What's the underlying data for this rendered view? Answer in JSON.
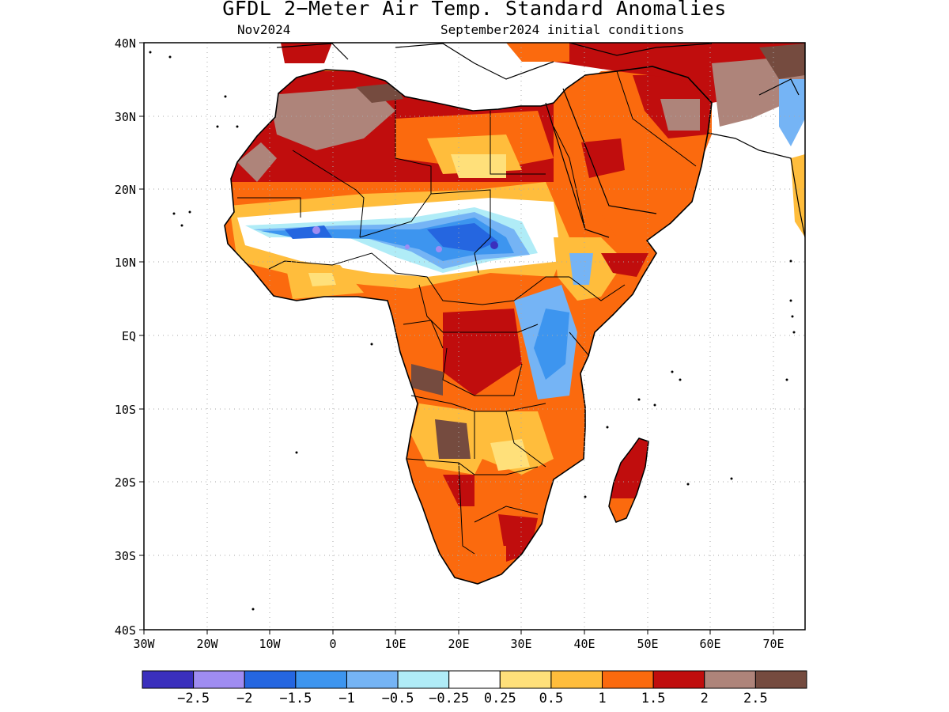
{
  "header": {
    "title": "GFDL 2−Meter Air Temp. Standard Anomalies",
    "valid_month": "Nov2024",
    "initial_conditions": "September2024 initial conditions"
  },
  "map": {
    "region": "Africa",
    "lon_range": [
      -30,
      75
    ],
    "lat_range": [
      -40,
      40
    ],
    "lat_labels": [
      "40N",
      "30N",
      "20N",
      "10N",
      "EQ",
      "10S",
      "20S",
      "30S",
      "40S"
    ],
    "lon_labels": [
      "30W",
      "20W",
      "10W",
      "0",
      "10E",
      "20E",
      "30E",
      "40E",
      "50E",
      "60E",
      "70E"
    ],
    "grid_lines": "dotted"
  },
  "colorbar": {
    "labels": [
      "−2.5",
      "−2",
      "−1.5",
      "−1",
      "−0.5",
      "−0.25",
      "0.25",
      "0.5",
      "1",
      "1.5",
      "2",
      "2.5"
    ],
    "colors": [
      "#3a2fbd",
      "#9f8cf2",
      "#2566e0",
      "#3d95ef",
      "#75b4f5",
      "#b0ecf7",
      "#ffffff",
      "#ffe07a",
      "#ffbd3c",
      "#fb6a0e",
      "#c00d0d",
      "#ae847a",
      "#754b3f"
    ]
  }
}
